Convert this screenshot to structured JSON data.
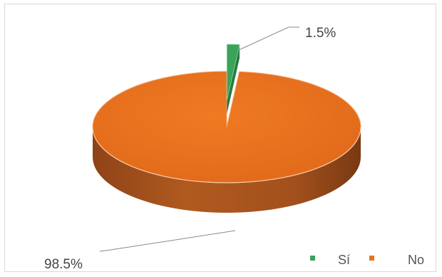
{
  "chart_data": {
    "type": "pie",
    "categories": [
      "Sí",
      "No"
    ],
    "values": [
      1.5,
      98.5
    ],
    "data_labels": [
      "1.5%",
      "98.5%"
    ],
    "colors": [
      "#3aa35a",
      "#e8731e"
    ],
    "side_colors": [
      "#2a7a42",
      "#a4531b"
    ],
    "style": "3d",
    "legend_placement": "bottom-right"
  }
}
